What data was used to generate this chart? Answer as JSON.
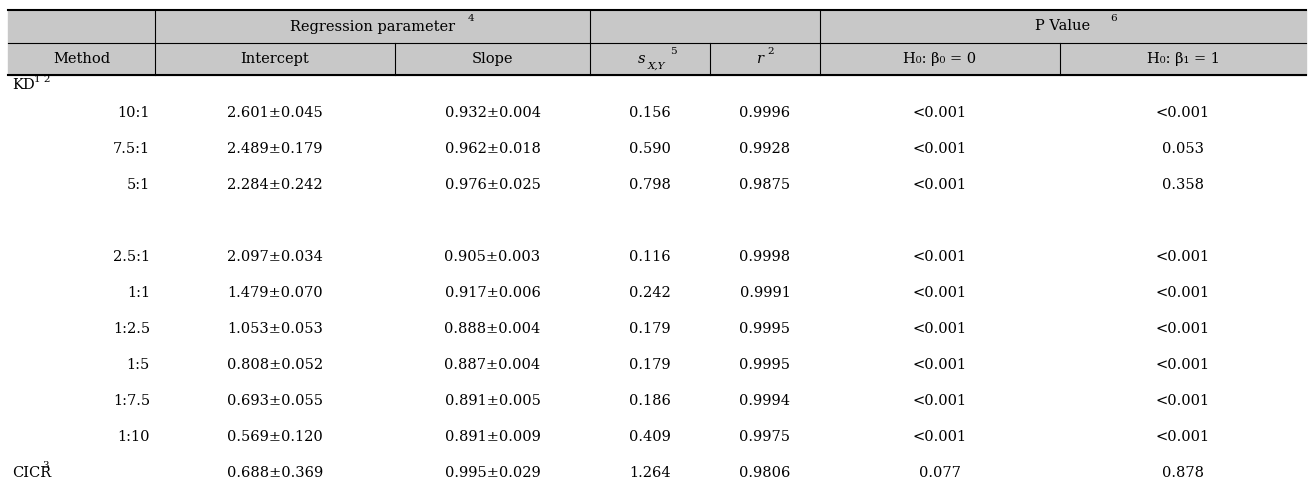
{
  "rows": [
    {
      "method": "10:1",
      "intercept": "2.601±0.045",
      "slope": "0.932±0.004",
      "sxy": "0.156",
      "r2": "0.9996",
      "h0b0": "<0.001",
      "h0b1": "<0.001"
    },
    {
      "method": "7.5:1",
      "intercept": "2.489±0.179",
      "slope": "0.962±0.018",
      "sxy": "0.590",
      "r2": "0.9928",
      "h0b0": "<0.001",
      "h0b1": "0.053"
    },
    {
      "method": "5:1",
      "intercept": "2.284±0.242",
      "slope": "0.976±0.025",
      "sxy": "0.798",
      "r2": "0.9875",
      "h0b0": "<0.001",
      "h0b1": "0.358"
    },
    {
      "method": "",
      "intercept": "",
      "slope": "",
      "sxy": "",
      "r2": "",
      "h0b0": "",
      "h0b1": ""
    },
    {
      "method": "2.5:1",
      "intercept": "2.097±0.034",
      "slope": "0.905±0.003",
      "sxy": "0.116",
      "r2": "0.9998",
      "h0b0": "<0.001",
      "h0b1": "<0.001"
    },
    {
      "method": "1:1",
      "intercept": "1.479±0.070",
      "slope": "0.917±0.006",
      "sxy": "0.242",
      "r2": "0.9991",
      "h0b0": "<0.001",
      "h0b1": "<0.001"
    },
    {
      "method": "1:2.5",
      "intercept": "1.053±0.053",
      "slope": "0.888±0.004",
      "sxy": "0.179",
      "r2": "0.9995",
      "h0b0": "<0.001",
      "h0b1": "<0.001"
    },
    {
      "method": "1:5",
      "intercept": "0.808±0.052",
      "slope": "0.887±0.004",
      "sxy": "0.179",
      "r2": "0.9995",
      "h0b0": "<0.001",
      "h0b1": "<0.001"
    },
    {
      "method": "1:7.5",
      "intercept": "0.693±0.055",
      "slope": "0.891±0.005",
      "sxy": "0.186",
      "r2": "0.9994",
      "h0b0": "<0.001",
      "h0b1": "<0.001"
    },
    {
      "method": "1:10",
      "intercept": "0.569±0.120",
      "slope": "0.891±0.009",
      "sxy": "0.409",
      "r2": "0.9975",
      "h0b0": "<0.001",
      "h0b1": "<0.001"
    }
  ],
  "cicr_row": {
    "method": "CICR",
    "intercept": "0.688±0.369",
    "slope": "0.995±0.029",
    "sxy": "1.264",
    "r2": "0.9806",
    "h0b0": "0.077",
    "h0b1": "0.878"
  },
  "bg_header": "#c8c8c8",
  "bg_white": "#ffffff",
  "font_size": 10.5,
  "font_family": "DejaVu Serif"
}
